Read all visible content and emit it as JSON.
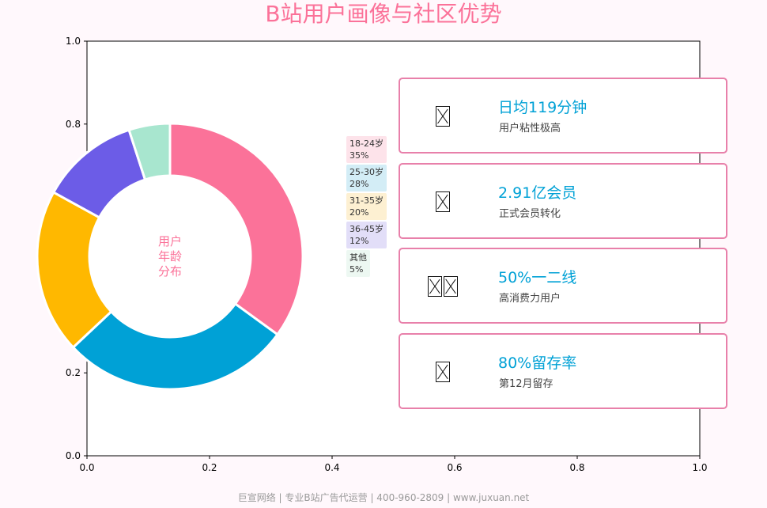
{
  "title": "B站用户画像与社区优势",
  "footer": "巨宣网络 | 专业B站广告代运营 | 400-960-2809 | www.juxuan.net",
  "chart_data": {
    "type": "pie",
    "variant": "donut",
    "center_label": [
      "用户",
      "年龄",
      "分布"
    ],
    "categories": [
      "18-24岁",
      "25-30岁",
      "31-35岁",
      "36-45岁",
      "其他"
    ],
    "values": [
      35,
      28,
      20,
      12,
      5
    ],
    "value_labels": [
      "35%",
      "28%",
      "20%",
      "12%",
      "5%"
    ],
    "colors": [
      "#fb7299",
      "#00a1d6",
      "#ffb800",
      "#6c5ce7",
      "#a8e6cf"
    ],
    "legend_bg": [
      "#fde3ea",
      "#d3edf6",
      "#fdf0d2",
      "#e2def8",
      "#edf8f2"
    ],
    "axes": {
      "xlim": [
        0,
        1
      ],
      "ylim": [
        0,
        1
      ],
      "xticks": [
        "0.0",
        "0.2",
        "0.4",
        "0.6",
        "0.8",
        "1.0"
      ],
      "yticks": [
        "0.0",
        "0.2",
        "0.4",
        "0.6",
        "0.8",
        "1.0"
      ]
    },
    "legend_position": "center"
  },
  "cards": [
    {
      "icon": "clock-icon",
      "glyph_count": 1,
      "title": "日均119分钟",
      "subtitle": "用户粘性极高"
    },
    {
      "icon": "member-icon",
      "glyph_count": 1,
      "title": "2.91亿会员",
      "subtitle": "正式会员转化"
    },
    {
      "icon": "city-icon",
      "glyph_count": 2,
      "title": "50%一二线",
      "subtitle": "高消费力用户"
    },
    {
      "icon": "retention-icon",
      "glyph_count": 1,
      "title": "80%留存率",
      "subtitle": "第12月留存"
    }
  ]
}
